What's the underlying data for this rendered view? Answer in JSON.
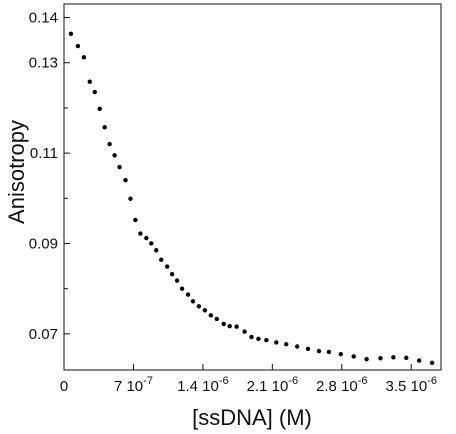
{
  "chart_data": {
    "type": "scatter",
    "title": "",
    "xlabel": "[ssDNA] (M)",
    "ylabel": "Anisotropy",
    "xlim": [
      0,
      3.8e-06
    ],
    "ylim": [
      0.062,
      0.143
    ],
    "grid": false,
    "legend": "none",
    "marker_color": "#000000",
    "x_ticks": [
      {
        "value": 0,
        "mantissa": "0",
        "exponent": ""
      },
      {
        "value": 7e-07,
        "mantissa": "7",
        "exponent": "10-7"
      },
      {
        "value": 1.4e-06,
        "mantissa": "1.4",
        "exponent": "10-6"
      },
      {
        "value": 2.1e-06,
        "mantissa": "2.1",
        "exponent": "10-6"
      },
      {
        "value": 2.8e-06,
        "mantissa": "2.8",
        "exponent": "10-6"
      },
      {
        "value": 3.5e-06,
        "mantissa": "3.5",
        "exponent": "10-6"
      }
    ],
    "y_ticks": [
      {
        "value": 0.14,
        "label": "0.14"
      },
      {
        "value": 0.13,
        "label": "0.13"
      },
      {
        "value": 0.11,
        "label": "0.11"
      },
      {
        "value": 0.09,
        "label": "0.09"
      },
      {
        "value": 0.07,
        "label": "0.07"
      }
    ],
    "y_minor_ticks": [
      0.12,
      0.1,
      0.08
    ],
    "series": [
      {
        "x": [
          7e-08,
          1.4e-07,
          2e-07,
          2.6e-07,
          3.1e-07,
          3.6e-07,
          4.1e-07,
          4.6e-07,
          5.1e-07,
          5.6e-07,
          6.2e-07,
          6.7e-07,
          7.2e-07,
          7.7e-07,
          8.3e-07,
          8.8e-07,
          9.3e-07,
          9.8e-07,
          1.04e-06,
          1.09e-06,
          1.14e-06,
          1.19e-06,
          1.25e-06,
          1.3e-06,
          1.36e-06,
          1.42e-06,
          1.48e-06,
          1.54e-06,
          1.61e-06,
          1.67e-06,
          1.74e-06,
          1.82e-06,
          1.89e-06,
          1.96e-06,
          2.04e-06,
          2.14e-06,
          2.24e-06,
          2.35e-06,
          2.46e-06,
          2.57e-06,
          2.67e-06,
          2.79e-06,
          2.92e-06,
          3.05e-06,
          3.19e-06,
          3.32e-06,
          3.45e-06,
          3.58e-06,
          3.71e-06
        ],
        "y": [
          0.1364,
          0.1337,
          0.1312,
          0.1258,
          0.1235,
          0.1198,
          0.1157,
          0.112,
          0.1095,
          0.1069,
          0.104,
          0.0999,
          0.0952,
          0.0922,
          0.0912,
          0.09,
          0.0885,
          0.0864,
          0.0849,
          0.0832,
          0.0818,
          0.08,
          0.0787,
          0.0772,
          0.0761,
          0.0752,
          0.0741,
          0.0733,
          0.0722,
          0.0717,
          0.0716,
          0.0705,
          0.0693,
          0.0689,
          0.0686,
          0.0681,
          0.0677,
          0.0672,
          0.0667,
          0.0662,
          0.066,
          0.0655,
          0.065,
          0.0644,
          0.0646,
          0.0648,
          0.0647,
          0.0641,
          0.0636
        ]
      }
    ]
  }
}
